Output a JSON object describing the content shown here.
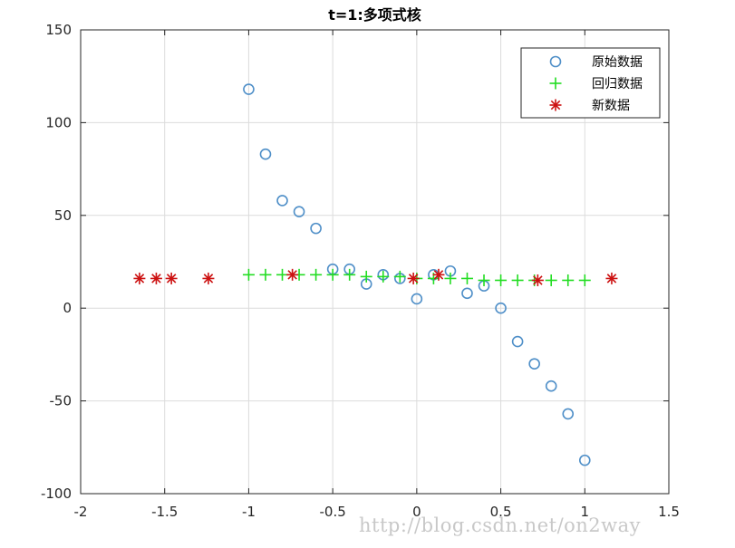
{
  "chart_data": {
    "type": "scatter",
    "title": "t=1:多项式核",
    "xlabel": "",
    "ylabel": "",
    "xlim": [
      -2,
      1.5
    ],
    "ylim": [
      -100,
      150
    ],
    "grid": true,
    "legend_position": "top-right",
    "x_ticks": [
      "-2",
      "-1.5",
      "-1",
      "-0.5",
      "0",
      "0.5",
      "1",
      "1.5"
    ],
    "y_ticks": [
      "150",
      "100",
      "50",
      "0",
      "-50",
      "-100"
    ],
    "series": [
      {
        "name": "原始数据",
        "marker": "circle",
        "color": "#4f8fc8",
        "x": [
          -1.0,
          -0.9,
          -0.8,
          -0.7,
          -0.6,
          -0.5,
          -0.4,
          -0.3,
          -0.2,
          -0.1,
          0.0,
          0.1,
          0.2,
          0.3,
          0.4,
          0.5,
          0.6,
          0.7,
          0.8,
          0.9,
          1.0
        ],
        "y": [
          118,
          83,
          58,
          52,
          43,
          21,
          21,
          13,
          18,
          16,
          5,
          18,
          20,
          8,
          12,
          0,
          -18,
          -30,
          -42,
          -57,
          -82
        ]
      },
      {
        "name": "回归数据",
        "marker": "plus",
        "color": "#22dd22",
        "x": [
          -1.0,
          -0.9,
          -0.8,
          -0.7,
          -0.6,
          -0.5,
          -0.4,
          -0.3,
          -0.2,
          -0.1,
          0.0,
          0.1,
          0.2,
          0.3,
          0.4,
          0.5,
          0.6,
          0.7,
          0.8,
          0.9,
          1.0
        ],
        "y": [
          18,
          18,
          18,
          18,
          18,
          18,
          18,
          17,
          17,
          17,
          16,
          16,
          16,
          16,
          15,
          15,
          15,
          15,
          15,
          15,
          15
        ]
      },
      {
        "name": "新数据",
        "marker": "asterisk",
        "color": "#cc1111",
        "x": [
          -1.65,
          -1.55,
          -1.46,
          -1.24,
          -0.74,
          -0.02,
          0.13,
          0.72,
          1.16
        ],
        "y": [
          16,
          16,
          16,
          16,
          18,
          16,
          18,
          15,
          16
        ]
      }
    ]
  },
  "watermark": "http://blog.csdn.net/on2way"
}
